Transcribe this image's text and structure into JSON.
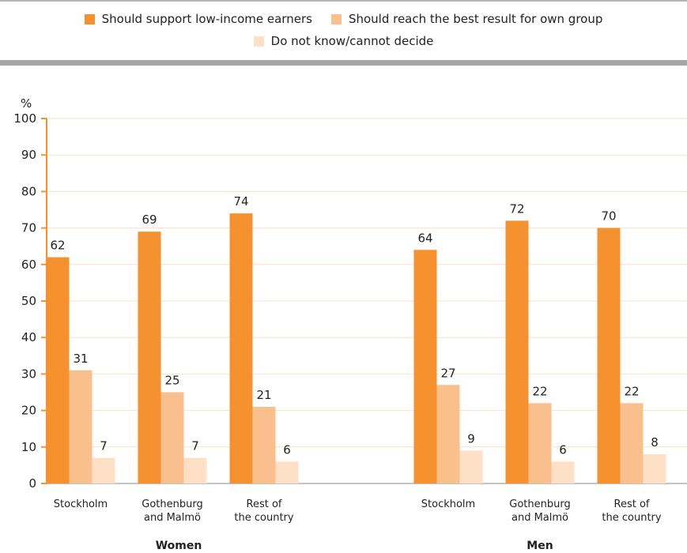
{
  "legend": {
    "items": [
      {
        "label": "Should support low-income earners",
        "color": "#f5922f"
      },
      {
        "label": "Should reach the best result for own group",
        "color": "#f9c08e"
      },
      {
        "label": "Do not know/cannot decide",
        "color": "#fde0c5"
      }
    ]
  },
  "chart_data": {
    "type": "bar",
    "ylabel": "%",
    "ylim": [
      0,
      100
    ],
    "yticks": [
      0,
      10,
      20,
      30,
      40,
      50,
      60,
      70,
      80,
      90,
      100
    ],
    "grid": true,
    "legend_position": "top",
    "colors": [
      "#f5922f",
      "#f9c08e",
      "#fde0c5"
    ],
    "series": [
      {
        "name": "Should support low-income earners",
        "values": [
          62,
          69,
          74,
          64,
          72,
          70
        ]
      },
      {
        "name": "Should reach the best result for own group",
        "values": [
          31,
          25,
          21,
          27,
          22,
          22
        ]
      },
      {
        "name": "Do not know/cannot decide",
        "values": [
          7,
          7,
          6,
          9,
          6,
          8
        ]
      }
    ],
    "groups": [
      {
        "label": "Women",
        "categories": [
          [
            "Stockholm"
          ],
          [
            "Gothenburg",
            "and Malmö"
          ],
          [
            "Rest of",
            "the country"
          ]
        ]
      },
      {
        "label": "Men",
        "categories": [
          [
            "Stockholm"
          ],
          [
            "Gothenburg",
            "and Malmö"
          ],
          [
            "Rest of",
            "the country"
          ]
        ]
      }
    ]
  }
}
